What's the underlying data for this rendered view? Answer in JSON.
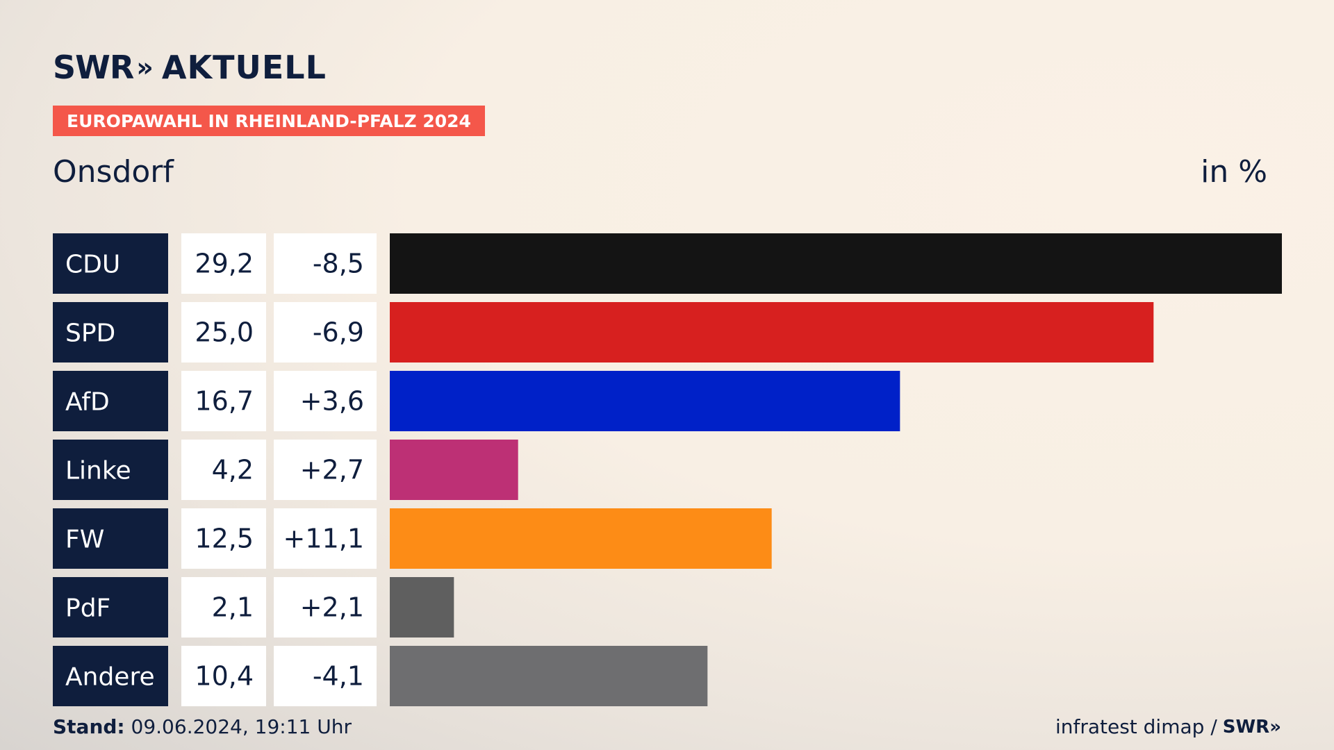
{
  "header": {
    "logo_text": "SWR",
    "logo_chevrons": "»",
    "brand_suffix": "AKTUELL",
    "badge": "EUROPAWAHL IN RHEINLAND-PFALZ 2024",
    "place": "Onsdorf",
    "unit": "in %"
  },
  "chart_data": {
    "type": "bar",
    "orientation": "horizontal",
    "categories": [
      "CDU",
      "SPD",
      "AfD",
      "Linke",
      "FW",
      "PdF",
      "Andere"
    ],
    "values": [
      29.2,
      25.0,
      16.7,
      4.2,
      12.5,
      2.1,
      10.4
    ],
    "value_labels": [
      "29,2",
      "25,0",
      "16,7",
      "4,2",
      "12,5",
      "2,1",
      "10,4"
    ],
    "changes": [
      -8.5,
      -6.9,
      3.6,
      2.7,
      11.1,
      2.1,
      -4.1
    ],
    "change_labels": [
      "-8,5",
      "-6,9",
      "+3,6",
      "+2,7",
      "+11,1",
      "+2,1",
      "-4,1"
    ],
    "colors": [
      "#141414",
      "#d7201f",
      "#0021c8",
      "#bd3075",
      "#fd8c16",
      "#5f5f5f",
      "#6e6e70"
    ],
    "xlim": [
      0,
      29.2
    ],
    "grid": false,
    "legend": "none"
  },
  "footer": {
    "stand_label": "Stand:",
    "stand_value": "09.06.2024, 19:11 Uhr",
    "source": "infratest dimap /",
    "source_logo": "SWR",
    "source_logo_chevrons": "»"
  }
}
